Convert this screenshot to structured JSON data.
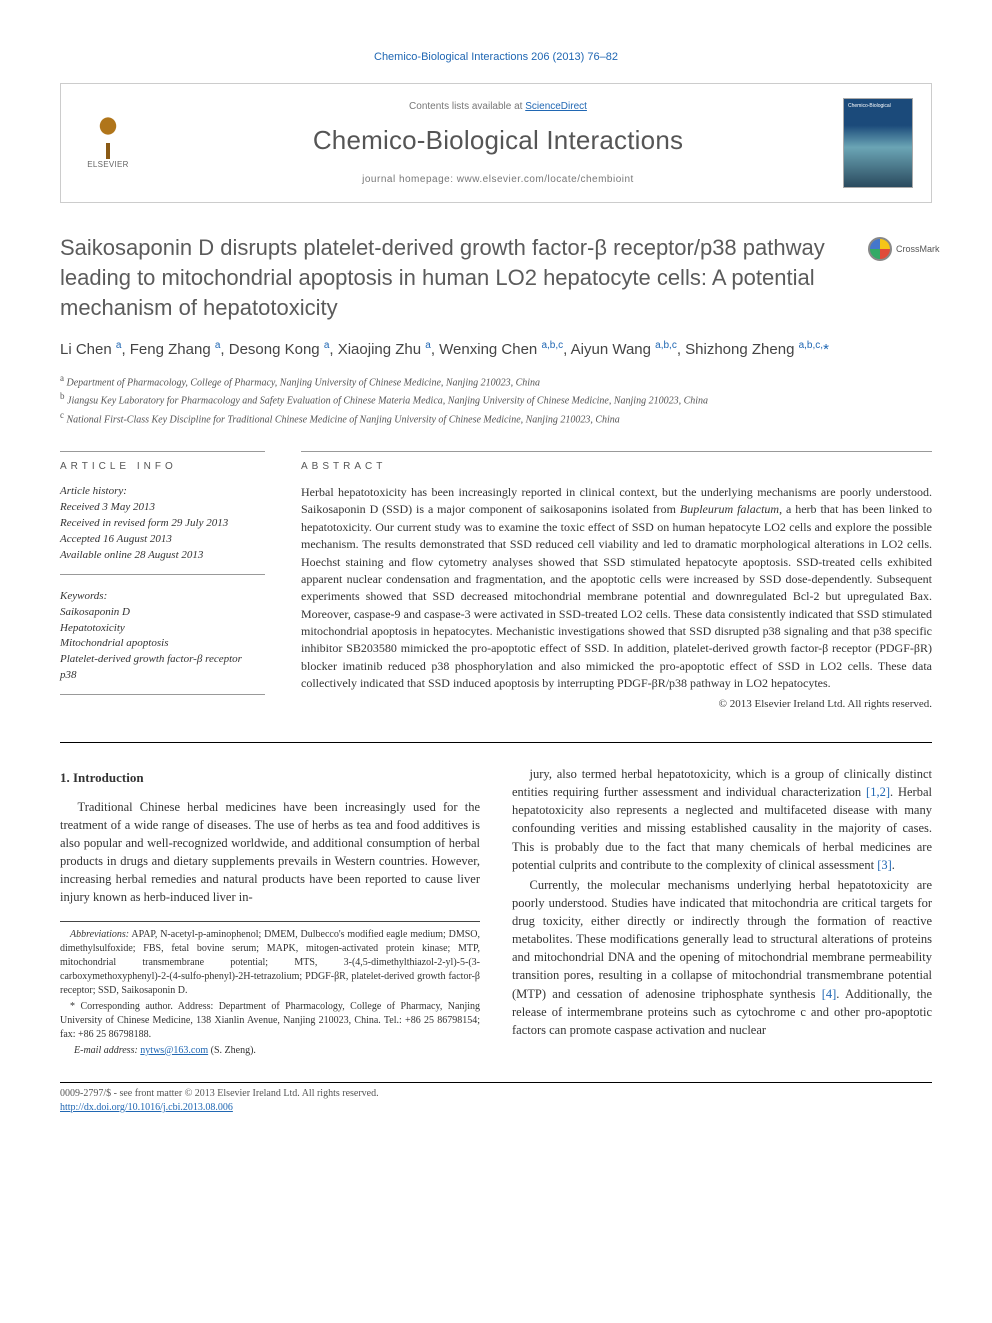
{
  "citation": "Chemico-Biological Interactions 206 (2013) 76–82",
  "header": {
    "publisher": "ELSEVIER",
    "contents_prefix": "Contents lists available at",
    "contents_link": "ScienceDirect",
    "journal": "Chemico-Biological Interactions",
    "homepage_prefix": "journal homepage:",
    "homepage": "www.elsevier.com/locate/chembioint"
  },
  "crossmark": "CrossMark",
  "title": "Saikosaponin D disrupts platelet-derived growth factor-β receptor/p38 pathway leading to mitochondrial apoptosis in human LO2 hepatocyte cells: A potential mechanism of hepatotoxicity",
  "authors_html": "Li Chen <sup>a</sup>, Feng Zhang <sup>a</sup>, Desong Kong <sup>a</sup>, Xiaojing Zhu <sup>a</sup>, Wenxing Chen <sup>a,b,c</sup>, Aiyun Wang <sup>a,b,c</sup>, Shizhong Zheng <sup>a,b,c,</sup><span class='star'>*</span>",
  "affiliations": [
    {
      "sup": "a",
      "text": "Department of Pharmacology, College of Pharmacy, Nanjing University of Chinese Medicine, Nanjing 210023, China"
    },
    {
      "sup": "b",
      "text": "Jiangsu Key Laboratory for Pharmacology and Safety Evaluation of Chinese Materia Medica, Nanjing University of Chinese Medicine, Nanjing 210023, China"
    },
    {
      "sup": "c",
      "text": "National First-Class Key Discipline for Traditional Chinese Medicine of Nanjing University of Chinese Medicine, Nanjing 210023, China"
    }
  ],
  "info": {
    "heading": "ARTICLE INFO",
    "history_label": "Article history:",
    "history": [
      "Received 3 May 2013",
      "Received in revised form 29 July 2013",
      "Accepted 16 August 2013",
      "Available online 28 August 2013"
    ],
    "keywords_label": "Keywords:",
    "keywords": [
      "Saikosaponin D",
      "Hepatotoxicity",
      "Mitochondrial apoptosis",
      "Platelet-derived growth factor-β receptor",
      "p38"
    ]
  },
  "abstract": {
    "heading": "ABSTRACT",
    "text_html": "Herbal hepatotoxicity has been increasingly reported in clinical context, but the underlying mechanisms are poorly understood. Saikosaponin D (SSD) is a major component of saikosaponins isolated from <i>Bupleurum falactum</i>, a herb that has been linked to hepatotoxicity. Our current study was to examine the toxic effect of SSD on human hepatocyte LO2 cells and explore the possible mechanism. The results demonstrated that SSD reduced cell viability and led to dramatic morphological alterations in LO2 cells. Hoechst staining and flow cytometry analyses showed that SSD stimulated hepatocyte apoptosis. SSD-treated cells exhibited apparent nuclear condensation and fragmentation, and the apoptotic cells were increased by SSD dose-dependently. Subsequent experiments showed that SSD decreased mitochondrial membrane potential and downregulated Bcl-2 but upregulated Bax. Moreover, caspase-9 and caspase-3 were activated in SSD-treated LO2 cells. These data consistently indicated that SSD stimulated mitochondrial apoptosis in hepatocytes. Mechanistic investigations showed that SSD disrupted p38 signaling and that p38 specific inhibitor SB203580 mimicked the pro-apoptotic effect of SSD. In addition, platelet-derived growth factor-β receptor (PDGF-βR) blocker imatinib reduced p38 phosphorylation and also mimicked the pro-apoptotic effect of SSD in LO2 cells. These data collectively indicated that SSD induced apoptosis by interrupting PDGF-βR/p38 pathway in LO2 hepatocytes.",
    "copyright": "© 2013 Elsevier Ireland Ltd. All rights reserved."
  },
  "body": {
    "heading": "1. Introduction",
    "p1": "Traditional Chinese herbal medicines have been increasingly used for the treatment of a wide range of diseases. The use of herbs as tea and food additives is also popular and well-recognized worldwide, and additional consumption of herbal products in drugs and dietary supplements prevails in Western countries. However, increasing herbal remedies and natural products have been reported to cause liver injury known as herb-induced liver in-",
    "p2_html": "jury, also termed herbal hepatotoxicity, which is a group of clinically distinct entities requiring further assessment and individual characterization <span class='ref-link'>[1,2]</span>. Herbal hepatotoxicity also represents a neglected and multifaceted disease with many confounding verities and missing established causality in the majority of cases. This is probably due to the fact that many chemicals of herbal medicines are potential culprits and contribute to the complexity of clinical assessment <span class='ref-link'>[3]</span>.",
    "p3_html": "Currently, the molecular mechanisms underlying herbal hepatotoxicity are poorly understood. Studies have indicated that mitochondria are critical targets for drug toxicity, either directly or indirectly through the formation of reactive metabolites. These modifications generally lead to structural alterations of proteins and mitochondrial DNA and the opening of mitochondrial membrane permeability transition pores, resulting in a collapse of mitochondrial transmembrane potential (MTP) and cessation of adenosine triphosphate synthesis <span class='ref-link'>[4]</span>. Additionally, the release of intermembrane proteins such as cytochrome c and other pro-apoptotic factors can promote caspase activation and nuclear"
  },
  "footnotes": {
    "abbrev_label": "Abbreviations:",
    "abbrev": "APAP, N-acetyl-p-aminophenol; DMEM, Dulbecco's modified eagle medium; DMSO, dimethylsulfoxide; FBS, fetal bovine serum; MAPK, mitogen-activated protein kinase; MTP, mitochondrial transmembrane potential; MTS, 3-(4,5-dimethylthiazol-2-yl)-5-(3-carboxymethoxyphenyl)-2-(4-sulfo-phenyl)-2H-tetrazolium; PDGF-βR, platelet-derived growth factor-β receptor; SSD, Saikosaponin D.",
    "corr_label": "* Corresponding author.",
    "corr": "Address: Department of Pharmacology, College of Pharmacy, Nanjing University of Chinese Medicine, 138 Xianlin Avenue, Nanjing 210023, China. Tel.: +86 25 86798154; fax: +86 25 86798188.",
    "email_label": "E-mail address:",
    "email": "nytws@163.com",
    "email_person": "(S. Zheng)."
  },
  "bottom": {
    "line1": "0009-2797/$ - see front matter © 2013 Elsevier Ireland Ltd. All rights reserved.",
    "doi": "http://dx.doi.org/10.1016/j.cbi.2013.08.006"
  },
  "colors": {
    "link": "#2067b3",
    "text": "#333333",
    "heading_gray": "#5b5b5b",
    "border": "#cccccc"
  }
}
